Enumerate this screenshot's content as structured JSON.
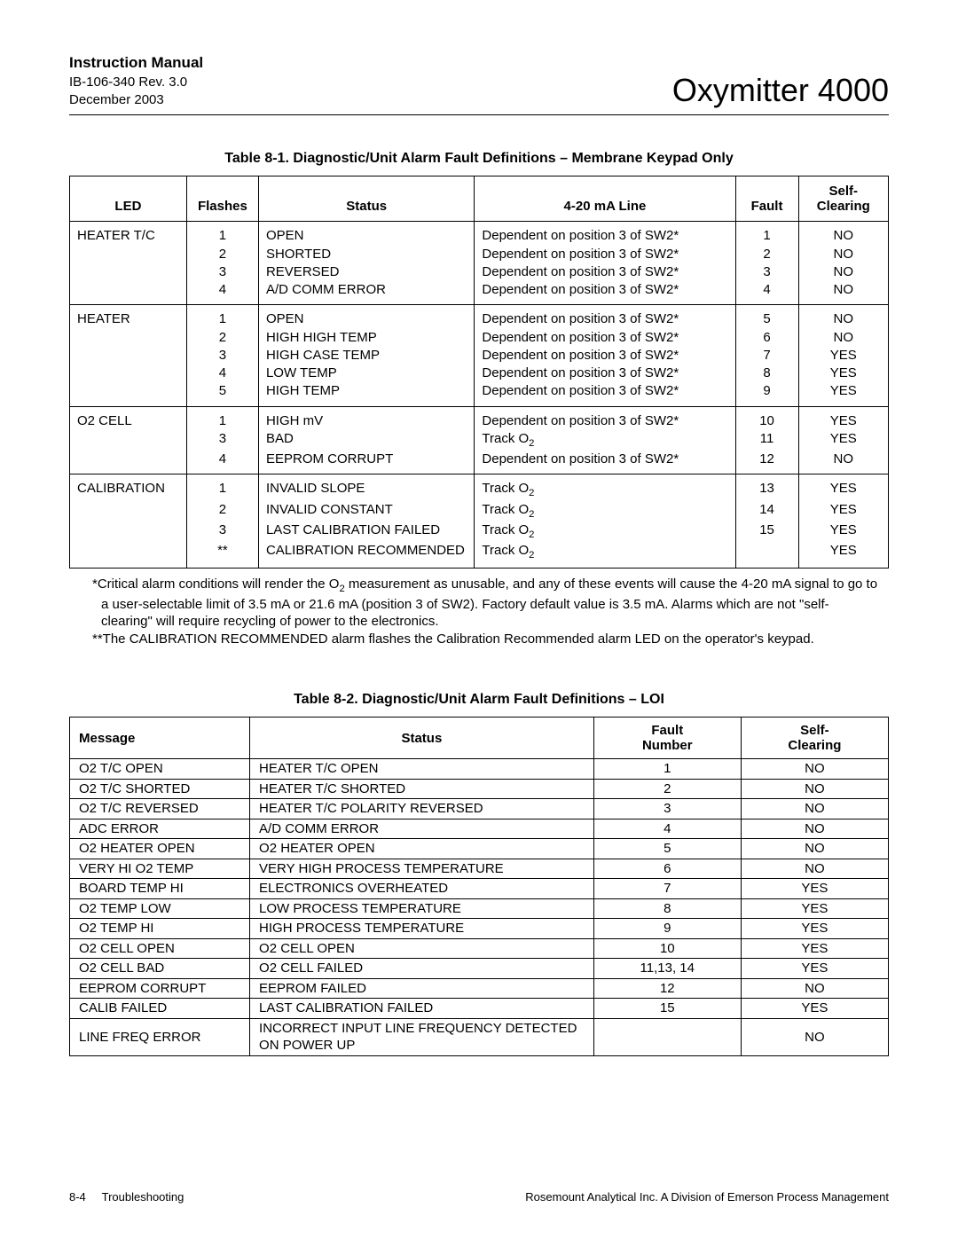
{
  "header": {
    "manual": "Instruction Manual",
    "doc_id": "IB-106-340  Rev. 3.0",
    "date": "December 2003",
    "product": "Oxymitter 4000"
  },
  "table1": {
    "title": "Table 8-1.  Diagnostic/Unit Alarm Fault Definitions – Membrane Keypad Only",
    "headers": {
      "led": "LED",
      "flashes": "Flashes",
      "status": "Status",
      "line": "4-20 mA Line",
      "fault": "Fault",
      "self_clearing": "Self-\nClearing"
    },
    "groups": [
      {
        "led": "HEATER T/C",
        "rows": [
          {
            "flashes": "1",
            "status": "OPEN",
            "line": "Dependent on position 3 of SW2*",
            "fault": "1",
            "clear": "NO"
          },
          {
            "flashes": "2",
            "status": "SHORTED",
            "line": "Dependent on position 3 of SW2*",
            "fault": "2",
            "clear": "NO"
          },
          {
            "flashes": "3",
            "status": "REVERSED",
            "line": "Dependent on position 3 of SW2*",
            "fault": "3",
            "clear": "NO"
          },
          {
            "flashes": "4",
            "status": "A/D COMM ERROR",
            "line": "Dependent on position 3 of SW2*",
            "fault": "4",
            "clear": "NO"
          }
        ]
      },
      {
        "led": "HEATER",
        "rows": [
          {
            "flashes": "1",
            "status": "OPEN",
            "line": "Dependent on position 3 of SW2*",
            "fault": "5",
            "clear": "NO"
          },
          {
            "flashes": "2",
            "status": "HIGH HIGH TEMP",
            "line": "Dependent on position 3 of SW2*",
            "fault": "6",
            "clear": "NO"
          },
          {
            "flashes": "3",
            "status": "HIGH CASE TEMP",
            "line": "Dependent on position 3 of SW2*",
            "fault": "7",
            "clear": "YES"
          },
          {
            "flashes": "4",
            "status": "LOW TEMP",
            "line": "Dependent on position 3 of SW2*",
            "fault": "8",
            "clear": "YES"
          },
          {
            "flashes": "5",
            "status": "HIGH TEMP",
            "line": "Dependent on position 3 of SW2*",
            "fault": "9",
            "clear": "YES"
          }
        ]
      },
      {
        "led": "O2 CELL",
        "rows": [
          {
            "flashes": "1",
            "status": "HIGH mV",
            "line": "Dependent on position 3 of SW2*",
            "fault": "10",
            "clear": "YES"
          },
          {
            "flashes": "3",
            "status": "BAD",
            "line": "Track O₂",
            "fault": "11",
            "clear": "YES"
          },
          {
            "flashes": "4",
            "status": "EEPROM CORRUPT",
            "line": "Dependent on position 3 of SW2*",
            "fault": "12",
            "clear": "NO"
          }
        ]
      },
      {
        "led": "CALIBRATION",
        "rows": [
          {
            "flashes": "1",
            "status": "INVALID SLOPE",
            "line": "Track O₂",
            "fault": "13",
            "clear": "YES"
          },
          {
            "flashes": "2",
            "status": "INVALID CONSTANT",
            "line": "Track O₂",
            "fault": "14",
            "clear": "YES"
          },
          {
            "flashes": "3",
            "status": "LAST CALIBRATION FAILED",
            "line": "Track O₂",
            "fault": "15",
            "clear": "YES"
          },
          {
            "flashes": "**",
            "status": "CALIBRATION RECOMMENDED",
            "line": "Track O₂",
            "fault": "",
            "clear": "YES"
          }
        ]
      }
    ]
  },
  "notes": {
    "n1": "*Critical alarm conditions will render the O₂ measurement as unusable, and any of these events will cause the 4-20 mA signal to go to a user-selectable limit of 3.5 mA or 21.6 mA (position 3 of SW2). Factory default value is 3.5 mA. Alarms which are not \"self-clearing\" will require recycling of power to the electronics.",
    "n2": "**The CALIBRATION RECOMMENDED alarm flashes the Calibration Recommended alarm LED on the operator's keypad."
  },
  "table2": {
    "title": "Table 8-2.  Diagnostic/Unit Alarm Fault Definitions – LOI",
    "headers": {
      "message": "Message",
      "status": "Status",
      "fault": "Fault\nNumber",
      "clear": "Self-\nClearing"
    },
    "rows": [
      {
        "msg": "O2 T/C OPEN",
        "status": "HEATER T/C OPEN",
        "fault": "1",
        "clear": "NO"
      },
      {
        "msg": "O2 T/C SHORTED",
        "status": "HEATER T/C SHORTED",
        "fault": "2",
        "clear": "NO"
      },
      {
        "msg": "O2 T/C REVERSED",
        "status": "HEATER T/C POLARITY REVERSED",
        "fault": "3",
        "clear": "NO"
      },
      {
        "msg": "ADC ERROR",
        "status": "A/D COMM ERROR",
        "fault": "4",
        "clear": "NO"
      },
      {
        "msg": "O2 HEATER OPEN",
        "status": "O2 HEATER OPEN",
        "fault": "5",
        "clear": "NO"
      },
      {
        "msg": "VERY HI O2 TEMP",
        "status": "VERY HIGH PROCESS TEMPERATURE",
        "fault": "6",
        "clear": "NO"
      },
      {
        "msg": "BOARD TEMP HI",
        "status": "ELECTRONICS OVERHEATED",
        "fault": "7",
        "clear": "YES"
      },
      {
        "msg": "O2 TEMP LOW",
        "status": "LOW PROCESS TEMPERATURE",
        "fault": "8",
        "clear": "YES"
      },
      {
        "msg": "O2 TEMP HI",
        "status": "HIGH PROCESS TEMPERATURE",
        "fault": "9",
        "clear": "YES"
      },
      {
        "msg": "O2 CELL OPEN",
        "status": "O2 CELL OPEN",
        "fault": "10",
        "clear": "YES"
      },
      {
        "msg": "O2 CELL BAD",
        "status": "O2 CELL FAILED",
        "fault": "11,13, 14",
        "clear": "YES"
      },
      {
        "msg": "EEPROM CORRUPT",
        "status": "EEPROM FAILED",
        "fault": "12",
        "clear": "NO"
      },
      {
        "msg": "CALIB FAILED",
        "status": "LAST CALIBRATION FAILED",
        "fault": "15",
        "clear": "YES"
      },
      {
        "msg": "LINE FREQ ERROR",
        "status": "INCORRECT INPUT LINE FREQUENCY DETECTED ON POWER UP",
        "fault": "",
        "clear": "NO"
      }
    ]
  },
  "footer": {
    "left_num": "8-4",
    "left_text": "Troubleshooting",
    "right": "Rosemount Analytical Inc.    A Division of Emerson Process Management"
  }
}
